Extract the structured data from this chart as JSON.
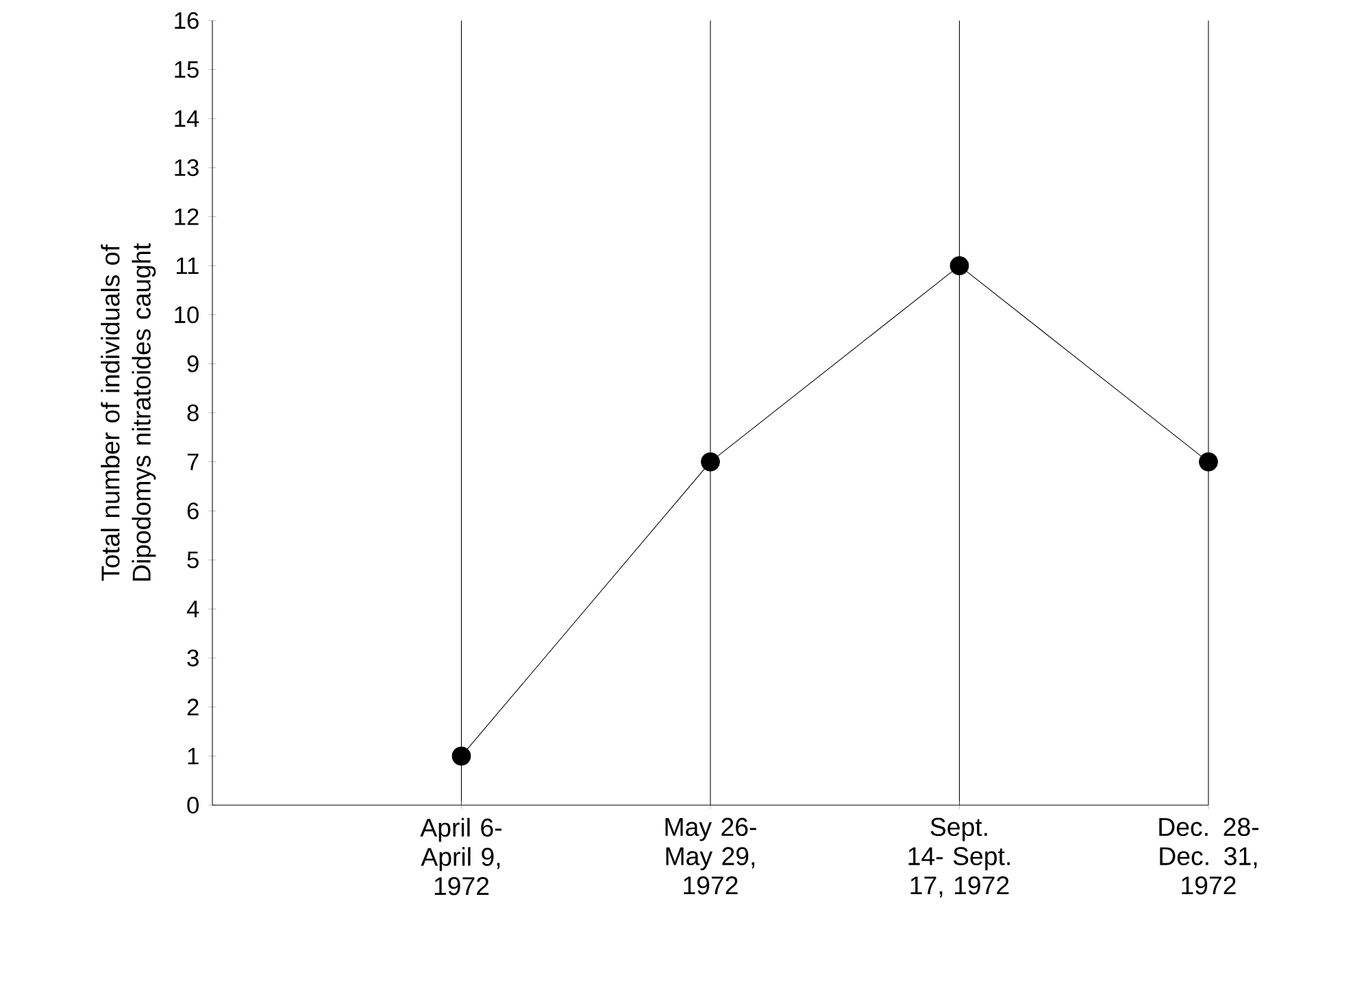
{
  "chart_data": {
    "type": "line",
    "ylabel": "Total number of individuals of Dipodomys nitratoides caught",
    "categories": [
      "April 6- April 9, 1972",
      "May 26- May 29, 1972",
      "Sept. 14- Sept. 17, 1972",
      "Dec. 28- Dec. 31, 1972"
    ],
    "values": [
      1,
      7,
      11,
      7
    ],
    "color": "#000000",
    "ylim": [
      0,
      16
    ],
    "yticks": [
      0,
      1,
      2,
      3,
      4,
      5,
      6,
      7,
      8,
      9,
      10,
      11,
      12,
      13,
      14,
      15,
      16
    ],
    "grid": "x",
    "marker": "circle",
    "line_style": "solid"
  }
}
